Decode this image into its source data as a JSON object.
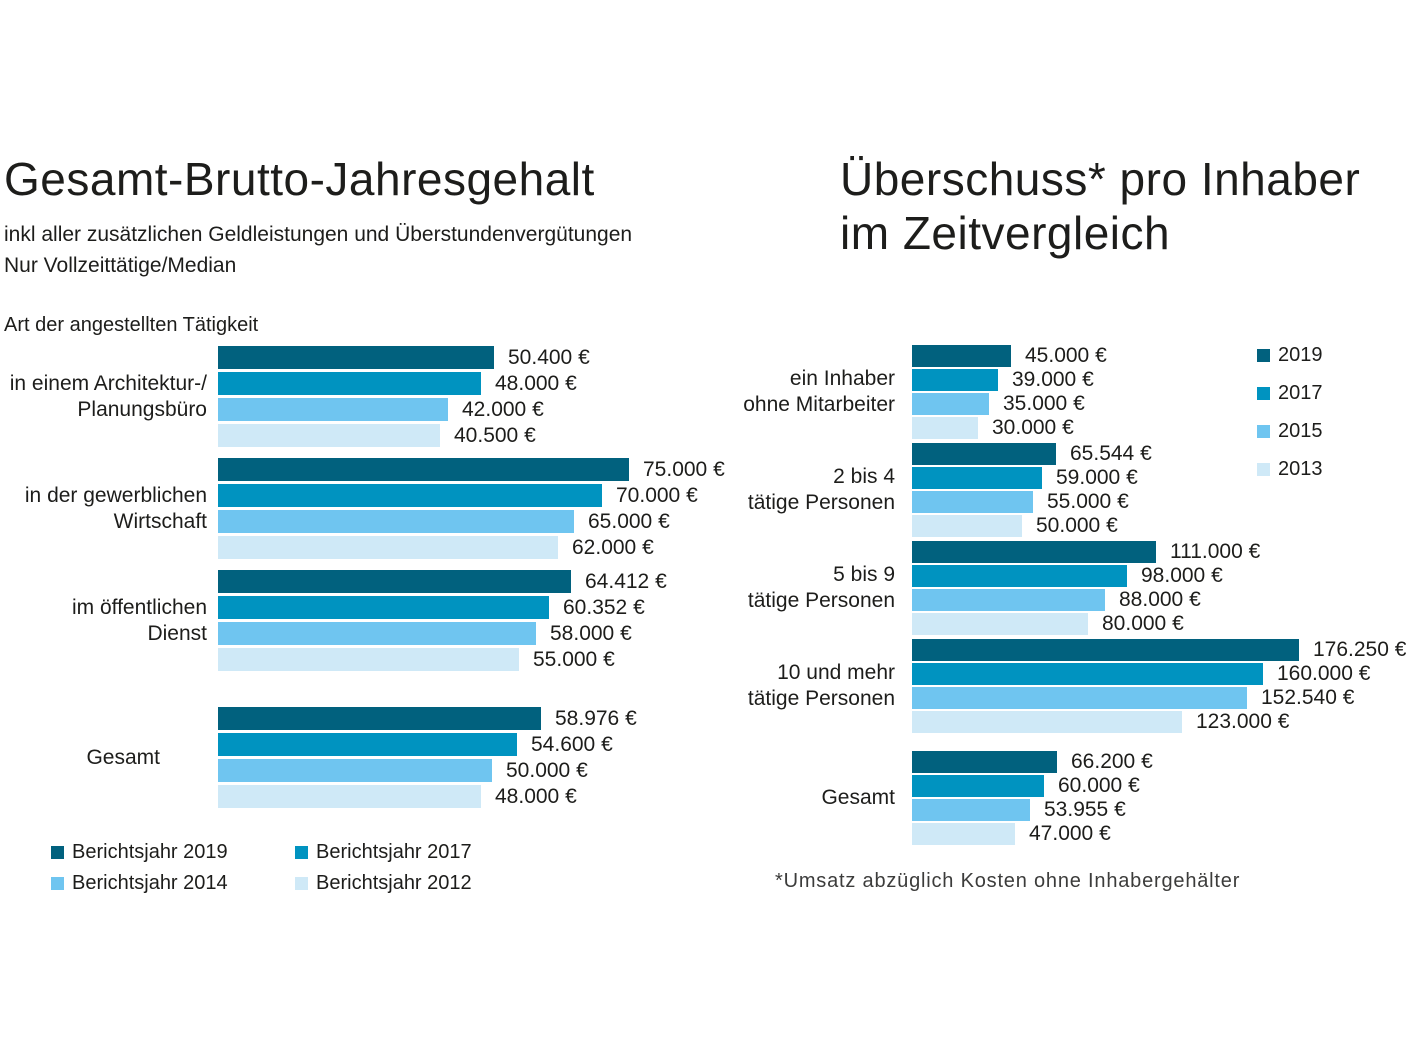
{
  "page": {
    "background": "#ffffff"
  },
  "colors": {
    "series": [
      "#01617e",
      "#0093c0",
      "#6fc5f0",
      "#cfe9f7"
    ],
    "text": "#1d1d1b",
    "footnote_text": "#3c3c3b"
  },
  "chart_data": [
    {
      "type": "bar",
      "orientation": "horizontal",
      "title": "Gesamt-Brutto-Jahresgehalt",
      "subtitle_lines": [
        "inkl aller zusätzlichen Geldleistungen und Überstundenvergütungen",
        "Nur Vollzeittätige/Median"
      ],
      "axis_label": "Art der angestellten Tätigkeit",
      "unit": "€",
      "xlim": [
        0,
        75000
      ],
      "grid": false,
      "legend_position": "bottom",
      "series_names": [
        "Berichtsjahr 2019",
        "Berichtsjahr 2017",
        "Berichtsjahr 2014",
        "Berichtsjahr 2012"
      ],
      "groups": [
        {
          "category_lines": [
            "in einem Architektur-/",
            "Planungsbüro"
          ],
          "values": [
            50400,
            48000,
            42000,
            40500
          ],
          "value_labels": [
            "50.400 €",
            "48.000 €",
            "42.000 €",
            "40.500 €"
          ]
        },
        {
          "category_lines": [
            "in der gewerblichen",
            "Wirtschaft"
          ],
          "values": [
            75000,
            70000,
            65000,
            62000
          ],
          "value_labels": [
            "75.000 €",
            "70.000 €",
            "65.000 €",
            "62.000 €"
          ]
        },
        {
          "category_lines": [
            "im öffentlichen",
            "Dienst"
          ],
          "values": [
            64412,
            60352,
            58000,
            55000
          ],
          "value_labels": [
            "64.412 €",
            "60.352 €",
            "58.000 €",
            "55.000 €"
          ]
        },
        {
          "category_lines": [
            "Gesamt"
          ],
          "values": [
            58976,
            54600,
            50000,
            48000
          ],
          "value_labels": [
            "58.976 €",
            "54.600 €",
            "50.000 €",
            "48.000 €"
          ]
        }
      ],
      "legend": [
        {
          "label": "Berichtsjahr 2019",
          "color": "#01617e"
        },
        {
          "label": "Berichtsjahr 2017",
          "color": "#0093c0"
        },
        {
          "label": "Berichtsjahr 2014",
          "color": "#6fc5f0"
        },
        {
          "label": "Berichtsjahr 2012",
          "color": "#cfe9f7"
        }
      ]
    },
    {
      "type": "bar",
      "orientation": "horizontal",
      "title_lines": [
        "Überschuss* pro Inhaber",
        "im Zeitvergleich"
      ],
      "unit": "€",
      "xlim": [
        0,
        176250
      ],
      "grid": false,
      "legend_position": "right",
      "series_names": [
        "2019",
        "2017",
        "2015",
        "2013"
      ],
      "groups": [
        {
          "category_lines": [
            "ein Inhaber",
            "ohne Mitarbeiter"
          ],
          "values": [
            45000,
            39000,
            35000,
            30000
          ],
          "value_labels": [
            "45.000 €",
            "39.000 €",
            "35.000 €",
            "30.000 €"
          ]
        },
        {
          "category_lines": [
            "2 bis 4",
            "tätige Personen"
          ],
          "values": [
            65544,
            59000,
            55000,
            50000
          ],
          "value_labels": [
            "65.544 €",
            "59.000 €",
            "55.000 €",
            "50.000 €"
          ]
        },
        {
          "category_lines": [
            "5 bis 9",
            "tätige Personen"
          ],
          "values": [
            111000,
            98000,
            88000,
            80000
          ],
          "value_labels": [
            "111.000 €",
            "98.000 €",
            "88.000 €",
            "80.000 €"
          ]
        },
        {
          "category_lines": [
            "10 und mehr",
            "tätige Personen"
          ],
          "values": [
            176250,
            160000,
            152540,
            123000
          ],
          "value_labels": [
            "176.250 €",
            "160.000 €",
            "152.540 €",
            "123.000 €"
          ]
        },
        {
          "category_lines": [
            "Gesamt"
          ],
          "values": [
            66200,
            60000,
            53955,
            47000
          ],
          "value_labels": [
            "66.200 €",
            "60.000 €",
            "53.955 €",
            "47.000 €"
          ]
        }
      ],
      "legend": [
        {
          "label": "2019",
          "color": "#01617e"
        },
        {
          "label": "2017",
          "color": "#0093c0"
        },
        {
          "label": "2015",
          "color": "#6fc5f0"
        },
        {
          "label": "2013",
          "color": "#cfe9f7"
        }
      ],
      "footnote": "*Umsatz abzüglich Kosten ohne Inhabergehälter"
    }
  ]
}
